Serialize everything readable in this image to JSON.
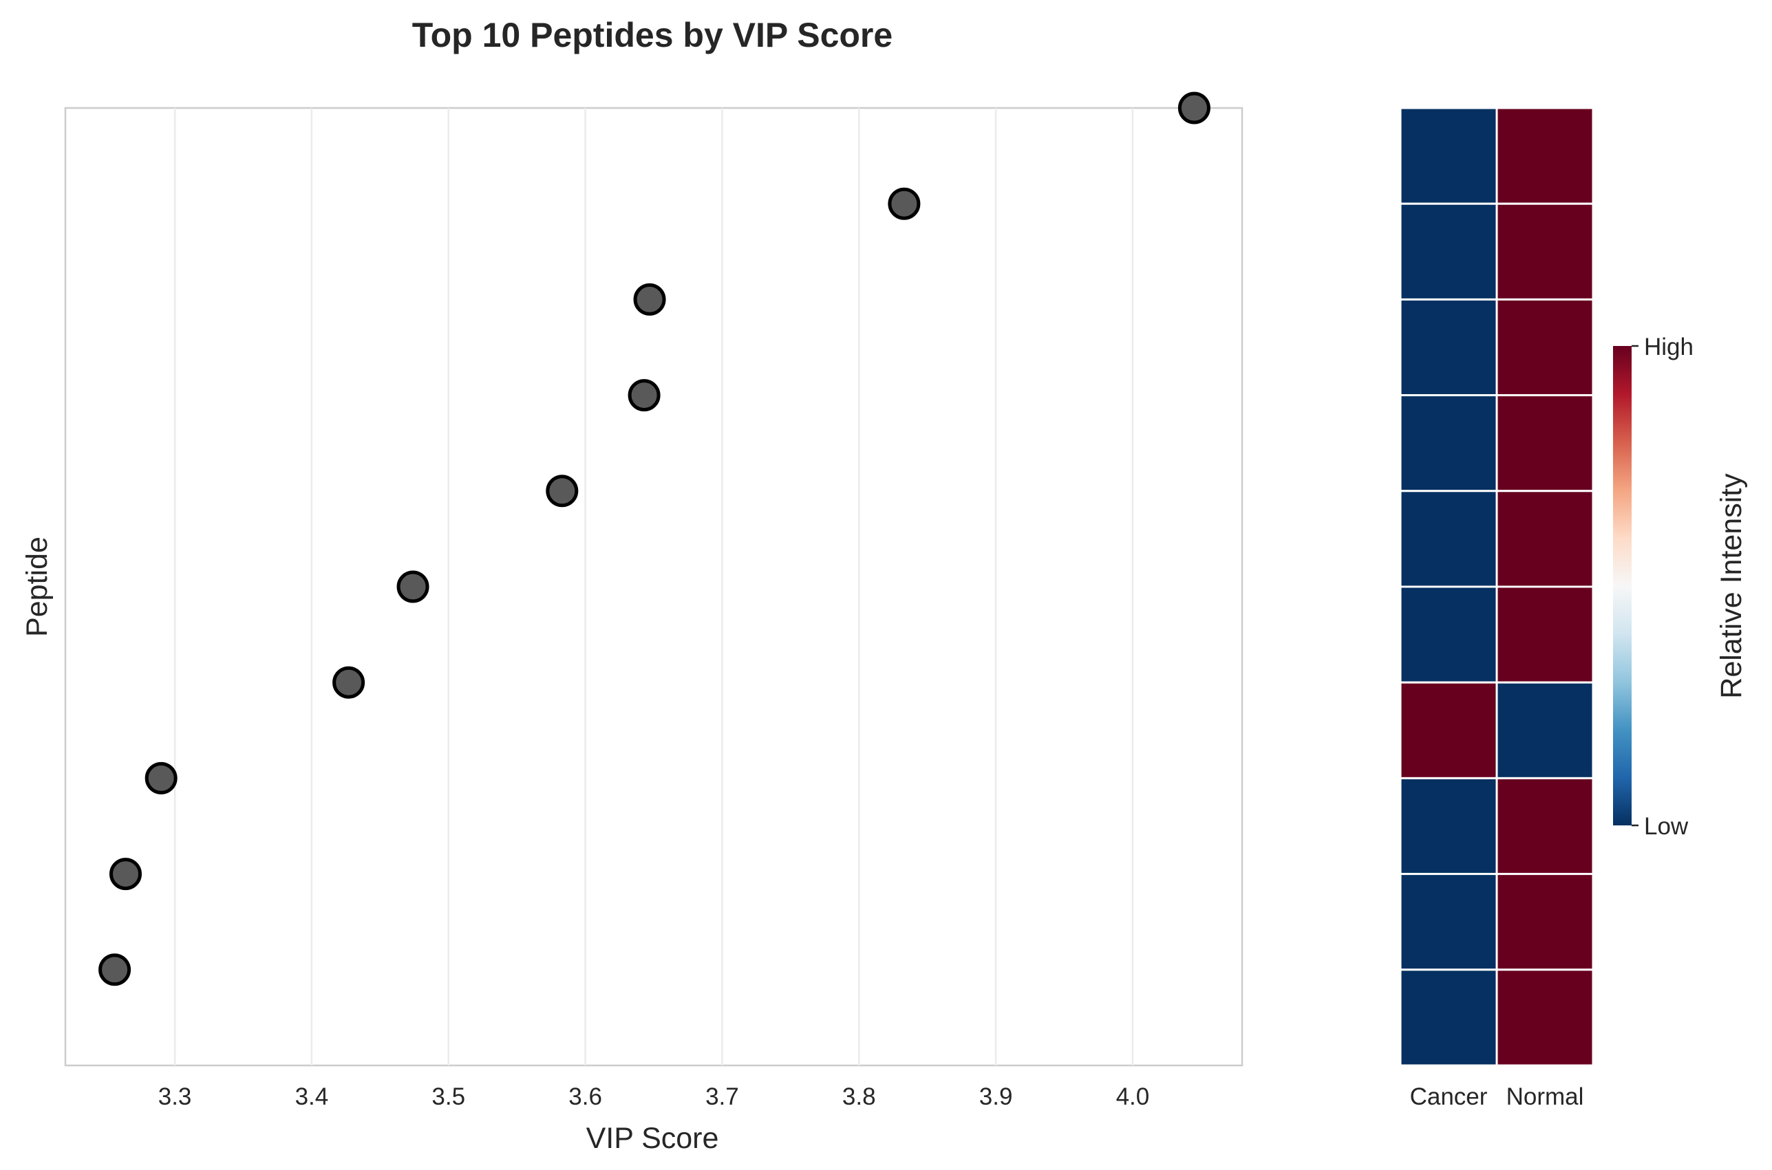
{
  "chart_data": [
    {
      "type": "scatter",
      "title": "Top 10 Peptides by VIP Score",
      "xlabel": "VIP Score",
      "ylabel": "Peptide",
      "xlim": [
        3.22,
        4.08
      ],
      "xticks": [
        3.3,
        3.4,
        3.5,
        3.6,
        3.7,
        3.8,
        3.9,
        4.0
      ],
      "xtick_labels": [
        "3.3",
        "3.4",
        "3.5",
        "3.6",
        "3.7",
        "3.8",
        "3.9",
        "4.0"
      ],
      "grid": "vertical",
      "marker_color": "#595959",
      "marker_edge_color": "#000000",
      "rows_top_to_bottom": 10,
      "points": [
        {
          "rank": 1,
          "x": 4.045
        },
        {
          "rank": 2,
          "x": 3.833
        },
        {
          "rank": 3,
          "x": 3.647
        },
        {
          "rank": 4,
          "x": 3.643
        },
        {
          "rank": 5,
          "x": 3.583
        },
        {
          "rank": 6,
          "x": 3.474
        },
        {
          "rank": 7,
          "x": 3.427
        },
        {
          "rank": 8,
          "x": 3.29
        },
        {
          "rank": 9,
          "x": 3.264
        },
        {
          "rank": 10,
          "x": 3.256
        }
      ]
    },
    {
      "type": "heatmap",
      "columns": [
        "Cancer",
        "Normal"
      ],
      "values": [
        [
          0,
          1
        ],
        [
          0,
          1
        ],
        [
          0,
          1
        ],
        [
          0,
          1
        ],
        [
          0,
          1
        ],
        [
          0,
          1
        ],
        [
          1,
          0
        ],
        [
          0,
          1
        ],
        [
          0,
          1
        ],
        [
          0,
          1
        ]
      ],
      "colormap": "RdBu_r",
      "low_color": "#053061",
      "high_color": "#67001f",
      "colorbar": {
        "label": "Relative Intensity",
        "ticks": [
          {
            "value": 0,
            "label": "Low"
          },
          {
            "value": 1,
            "label": "High"
          }
        ],
        "stops": [
          "#053061",
          "#2166ac",
          "#4393c3",
          "#92c5de",
          "#d1e5f0",
          "#f7f7f7",
          "#fddbc7",
          "#f4a582",
          "#d6604d",
          "#b2182b",
          "#67001f"
        ]
      }
    }
  ]
}
